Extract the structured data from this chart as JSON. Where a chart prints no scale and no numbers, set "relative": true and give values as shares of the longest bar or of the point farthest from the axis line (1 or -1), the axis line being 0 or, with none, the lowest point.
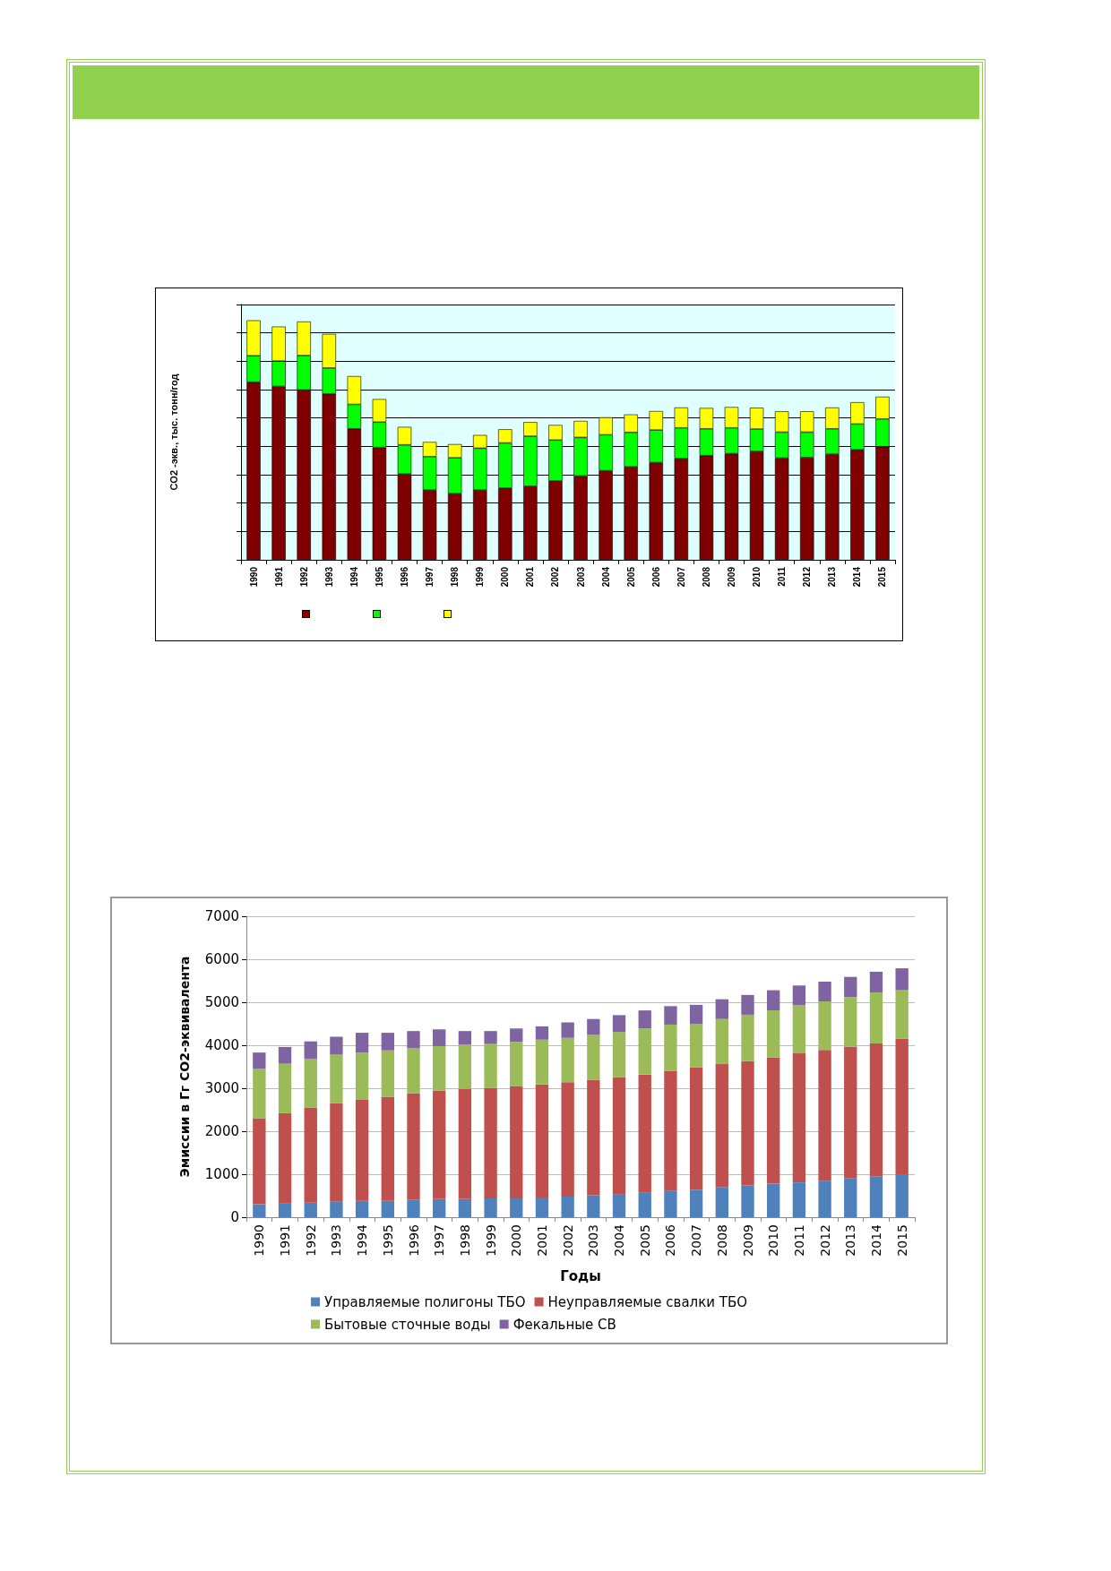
{
  "chart_data": [
    {
      "type": "bar",
      "stacked": true,
      "relative": true,
      "ylabel": "CO2 -экв., тыс. тонн/год",
      "grid": "y",
      "categories": [
        "1990",
        "1991",
        "1992",
        "1993",
        "1994",
        "1995",
        "1996",
        "1997",
        "1998",
        "1999",
        "2000",
        "2001",
        "2002",
        "2003",
        "2004",
        "2005",
        "2006",
        "2007",
        "2008",
        "2009",
        "2010",
        "2011",
        "2012",
        "2013",
        "2014",
        "2015"
      ],
      "series": [
        {
          "color": "#800000",
          "values": [
            0.742,
            0.724,
            0.709,
            0.693,
            0.547,
            0.469,
            0.358,
            0.291,
            0.276,
            0.291,
            0.299,
            0.307,
            0.329,
            0.35,
            0.372,
            0.388,
            0.406,
            0.423,
            0.435,
            0.443,
            0.453,
            0.425,
            0.427,
            0.441,
            0.459,
            0.472
          ]
        },
        {
          "color": "#00ff00",
          "values": [
            0.11,
            0.106,
            0.144,
            0.108,
            0.102,
            0.106,
            0.122,
            0.14,
            0.15,
            0.175,
            0.189,
            0.209,
            0.171,
            0.161,
            0.15,
            0.144,
            0.136,
            0.128,
            0.112,
            0.108,
            0.093,
            0.108,
            0.106,
            0.106,
            0.108,
            0.116
          ]
        },
        {
          "color": "#ffff00",
          "values": [
            0.148,
            0.144,
            0.142,
            0.142,
            0.118,
            0.096,
            0.075,
            0.061,
            0.057,
            0.055,
            0.057,
            0.059,
            0.063,
            0.069,
            0.073,
            0.075,
            0.079,
            0.085,
            0.087,
            0.087,
            0.089,
            0.087,
            0.087,
            0.089,
            0.091,
            0.093
          ]
        }
      ]
    },
    {
      "type": "bar",
      "stacked": true,
      "xlabel": "Годы",
      "ylabel": "Эмиссии в Гг CO2-эквивалента",
      "grid": "y",
      "legend": "bottom",
      "ylim": [
        0,
        7000
      ],
      "yticks": [
        0,
        1000,
        2000,
        3000,
        4000,
        5000,
        6000,
        7000
      ],
      "categories": [
        "1990",
        "1991",
        "1992",
        "1993",
        "1994",
        "1995",
        "1996",
        "1997",
        "1998",
        "1999",
        "2000",
        "2001",
        "2002",
        "2003",
        "2004",
        "2005",
        "2006",
        "2007",
        "2008",
        "2009",
        "2010",
        "2011",
        "2012",
        "2013",
        "2014",
        "2015"
      ],
      "series": [
        {
          "name": "Управляемые полигоны ТБО",
          "color": "#4f81bd",
          "values": [
            300,
            320,
            340,
            360,
            380,
            380,
            400,
            420,
            420,
            440,
            440,
            460,
            480,
            510,
            540,
            570,
            610,
            640,
            700,
            740,
            780,
            810,
            850,
            900,
            950,
            1000
          ]
        },
        {
          "name": "Неуправляемые свалки ТБО",
          "color": "#c0504d",
          "values": [
            2000,
            2100,
            2210,
            2290,
            2350,
            2420,
            2480,
            2520,
            2560,
            2570,
            2610,
            2630,
            2660,
            2690,
            2720,
            2750,
            2790,
            2850,
            2860,
            2890,
            2940,
            3000,
            3040,
            3070,
            3090,
            3150
          ]
        },
        {
          "name": "Бытовые сточные воды",
          "color": "#9bbb59",
          "values": [
            1150,
            1150,
            1130,
            1130,
            1100,
            1080,
            1050,
            1040,
            1030,
            1020,
            1030,
            1040,
            1030,
            1040,
            1050,
            1070,
            1080,
            1010,
            1050,
            1080,
            1090,
            1120,
            1130,
            1150,
            1190,
            1130
          ]
        },
        {
          "name": "Фекальные СВ",
          "color": "#8064a2",
          "values": [
            380,
            390,
            410,
            420,
            460,
            410,
            400,
            390,
            320,
            300,
            310,
            310,
            360,
            370,
            390,
            420,
            430,
            440,
            460,
            460,
            470,
            460,
            460,
            470,
            480,
            510
          ]
        }
      ]
    }
  ]
}
